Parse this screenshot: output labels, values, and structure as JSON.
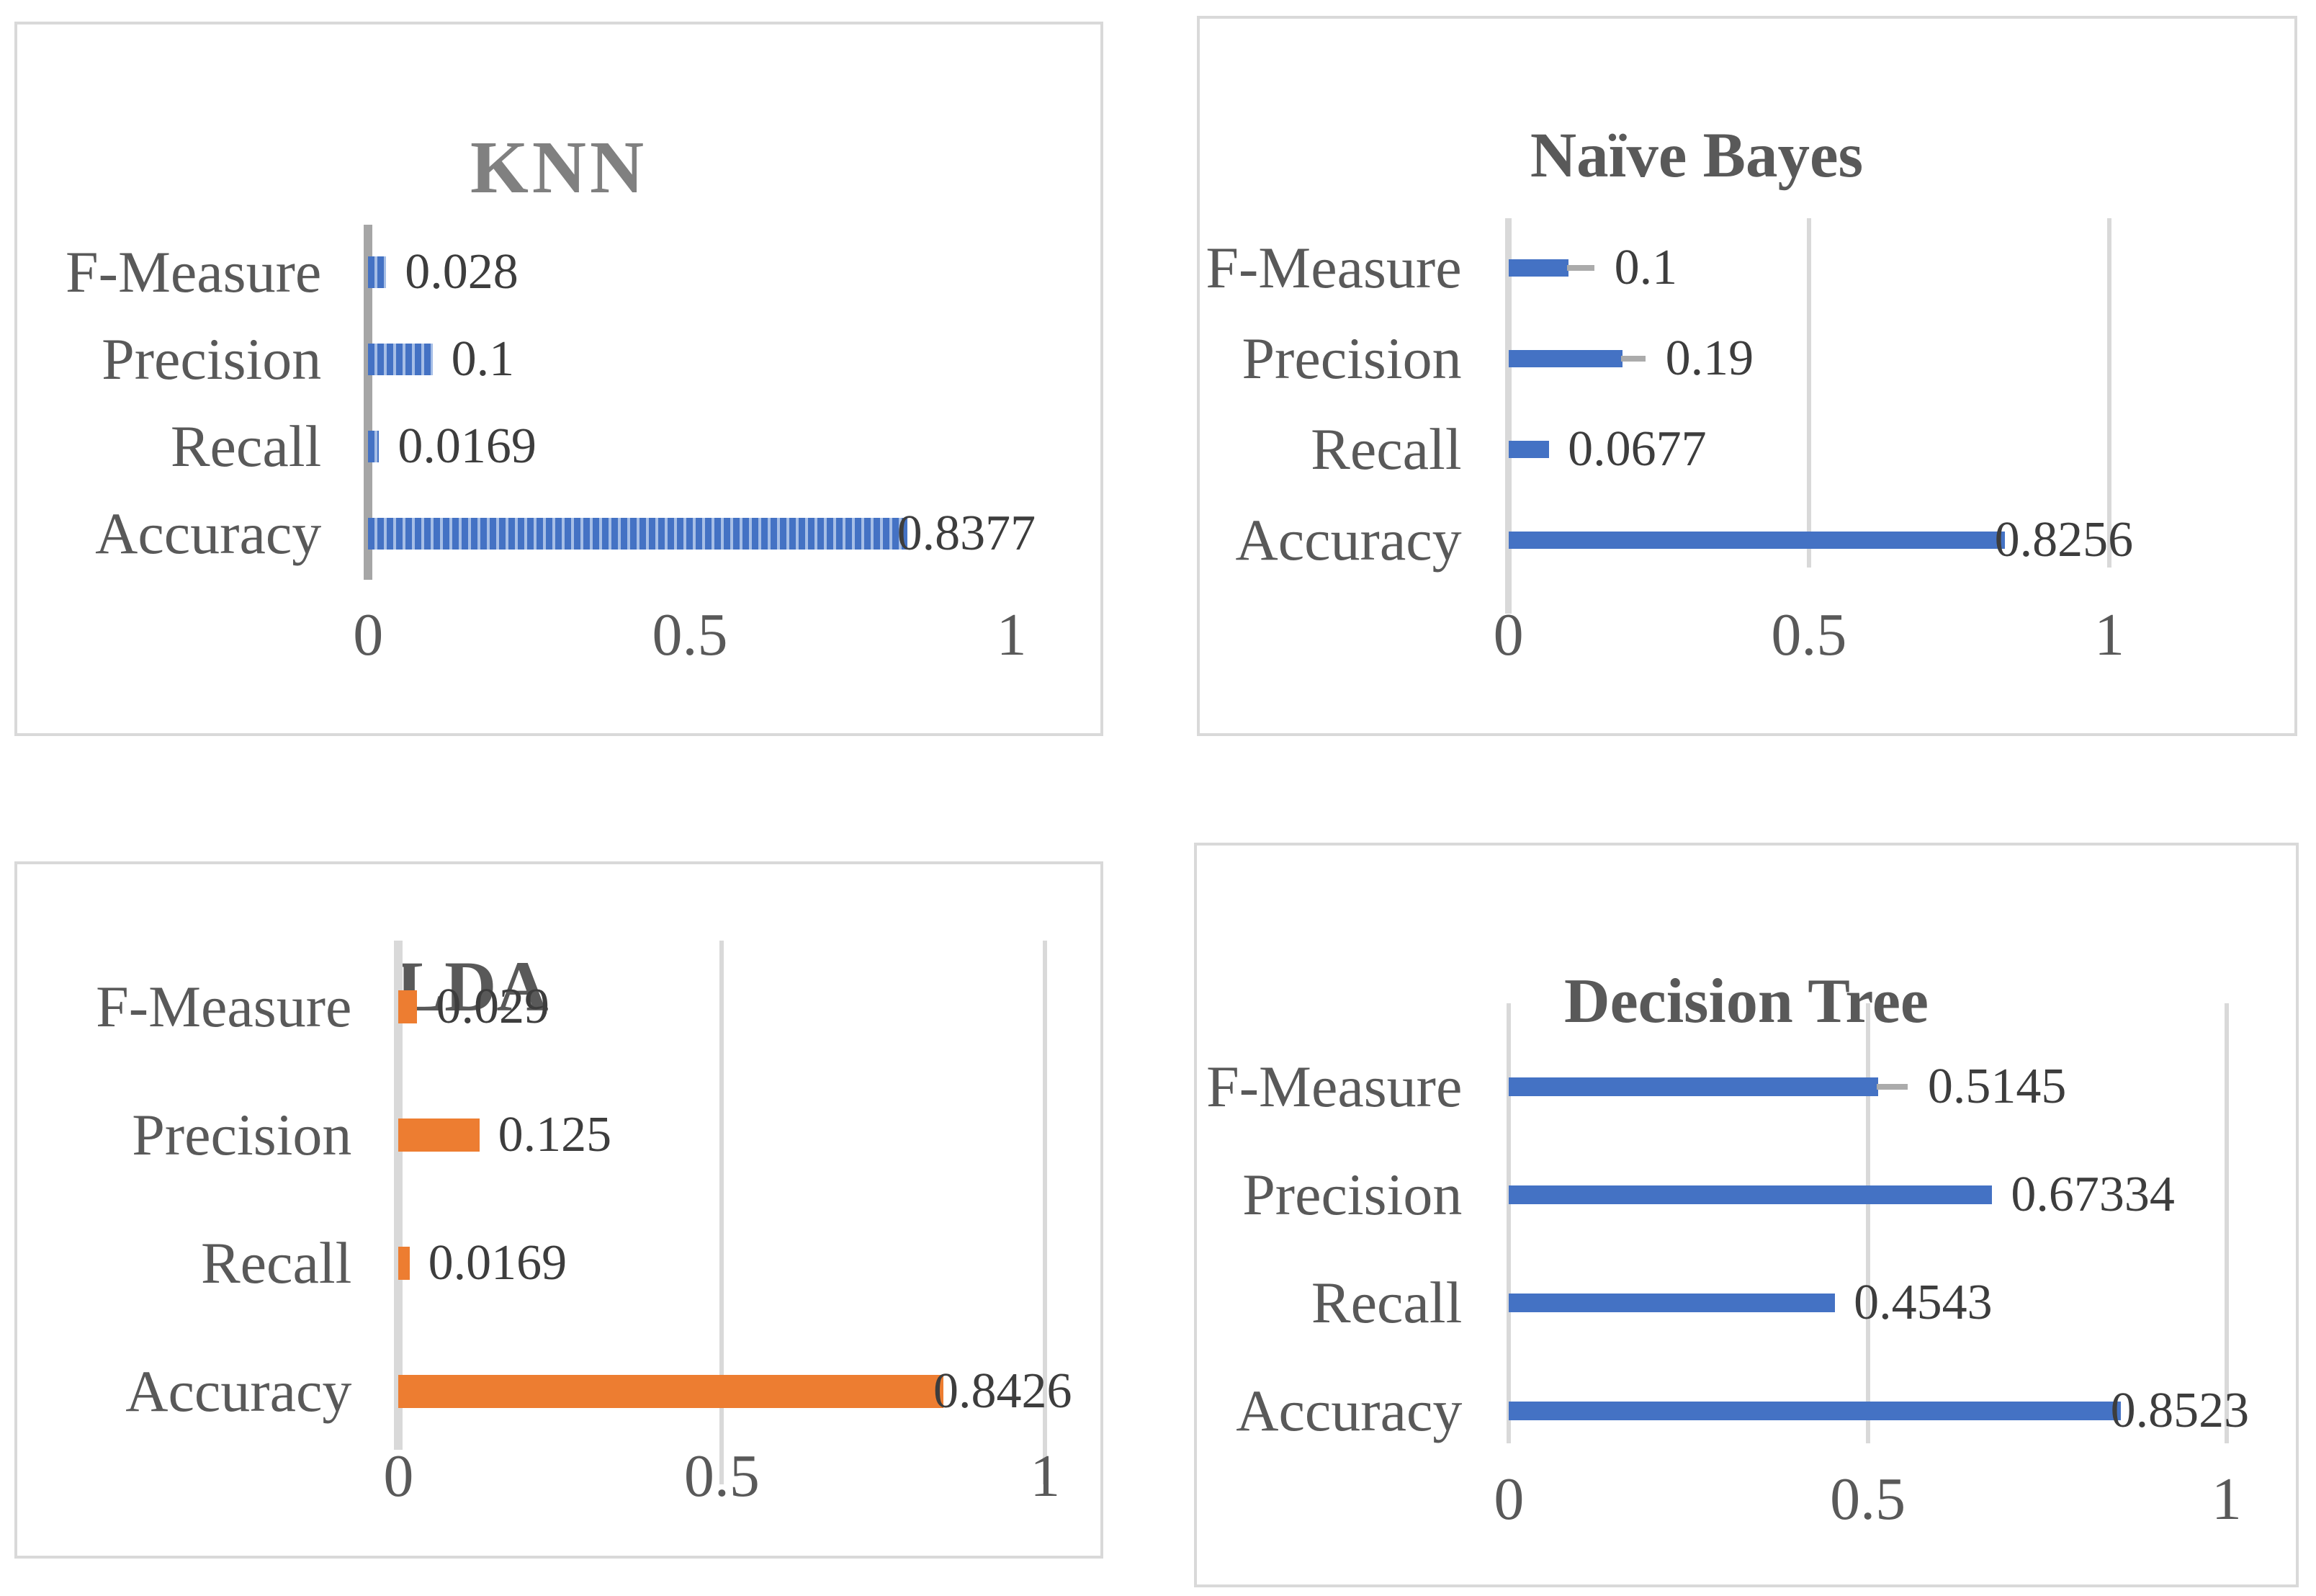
{
  "figure": {
    "description_colors": {
      "bar_blue": "#4472C4",
      "bar_blue_stripe_light": "#A6BEE6",
      "bar_orange": "#ED7D31",
      "gridline": "#D9D9D9",
      "knn_axis_line": "#A6A6A6",
      "error_bar": "#ABABAB",
      "panel_border": "#D9D9D9",
      "title_knn": "#808080",
      "title_default": "#595959",
      "category_text": "#595959",
      "value_text": "#3D3D3D"
    }
  },
  "chart_data": [
    {
      "type": "bar",
      "orientation": "horizontal",
      "title": "KNN",
      "title_style": "bold-gray",
      "categories": [
        "F-Measure",
        "Precision",
        "Recall",
        "Accuracy"
      ],
      "values": [
        0.028,
        0.1,
        0.0169,
        0.8377
      ],
      "value_labels": [
        "0.028",
        "0.1",
        "0.0169",
        "0.8377"
      ],
      "error_bars": [
        null,
        null,
        null,
        null
      ],
      "x_ticks": [
        {
          "label": "0",
          "value": 0
        },
        {
          "label": "0.5",
          "value": 0.5
        },
        {
          "label": "1",
          "value": 1
        }
      ],
      "xlim": [
        0,
        1
      ],
      "gridlines_at": [],
      "axis_line": "solid-medium-gray",
      "bar_color": "#4472C4",
      "bar_pattern": "vertical-stripes",
      "legend": "none"
    },
    {
      "type": "bar",
      "orientation": "horizontal",
      "title": "Naïve Bayes",
      "title_style": "regular-dark-gray",
      "categories": [
        "F-Measure",
        "Precision",
        "Recall",
        "Accuracy"
      ],
      "values": [
        0.1,
        0.19,
        0.0677,
        0.8256
      ],
      "value_labels": [
        "0.1",
        "0.19",
        "0.0677",
        "0.8256"
      ],
      "error_bars": [
        0.045,
        0.04,
        null,
        null
      ],
      "x_ticks": [
        {
          "label": "0",
          "value": 0
        },
        {
          "label": "0.5",
          "value": 0.5
        },
        {
          "label": "1",
          "value": 1
        }
      ],
      "xlim": [
        0,
        1
      ],
      "gridlines_at": [
        0.5,
        1
      ],
      "axis_line": "solid-light-gray",
      "bar_color": "#4472C4",
      "bar_pattern": "solid",
      "legend": "none"
    },
    {
      "type": "bar",
      "orientation": "horizontal",
      "title": "LDA",
      "title_style": "regular-dark-gray",
      "categories": [
        "F-Measure",
        "Precision",
        "Recall",
        "Accuracy"
      ],
      "values": [
        0.029,
        0.125,
        0.0169,
        0.8426
      ],
      "value_labels": [
        "0.029",
        "0.125",
        "0.0169",
        "0.8426"
      ],
      "error_bars": [
        null,
        null,
        null,
        null
      ],
      "x_ticks": [
        {
          "label": "0",
          "value": 0
        },
        {
          "label": "0.5",
          "value": 0.5
        },
        {
          "label": "1",
          "value": 1
        }
      ],
      "xlim": [
        0,
        1
      ],
      "gridlines_at": [
        0.5,
        1
      ],
      "axis_line": "solid-light-gray",
      "bar_color": "#ED7D31",
      "bar_pattern": "solid",
      "legend": "none"
    },
    {
      "type": "bar",
      "orientation": "horizontal",
      "title": "Decision Tree",
      "title_style": "regular-dark-gray",
      "categories": [
        "F-Measure",
        "Precision",
        "Recall",
        "Accuracy"
      ],
      "values": [
        0.5145,
        0.67334,
        0.4543,
        0.8523
      ],
      "value_labels": [
        "0.5145",
        "0.67334",
        "0.4543",
        "0.8523"
      ],
      "error_bars": [
        0.043,
        null,
        null,
        null
      ],
      "x_ticks": [
        {
          "label": "0",
          "value": 0
        },
        {
          "label": "0.5",
          "value": 0.5
        },
        {
          "label": "1",
          "value": 1
        }
      ],
      "xlim": [
        0,
        1
      ],
      "gridlines_at": [
        0,
        0.5,
        1
      ],
      "axis_line": "none",
      "bar_color": "#4472C4",
      "bar_pattern": "solid",
      "legend": "none"
    }
  ]
}
